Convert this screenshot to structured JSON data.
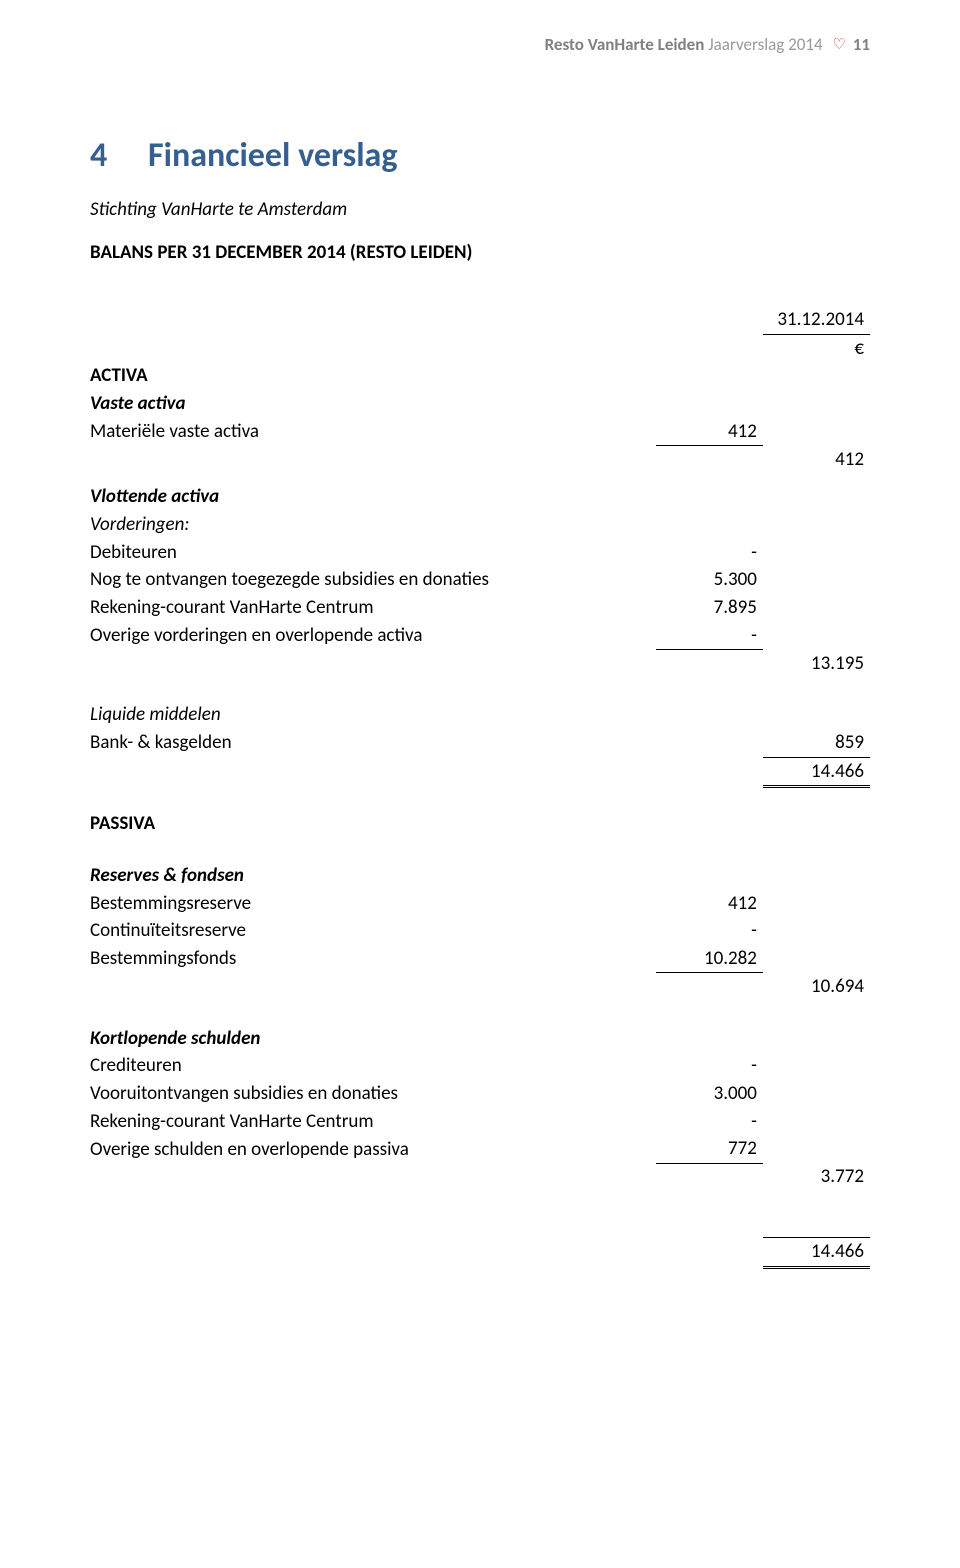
{
  "header": {
    "bold": "Resto VanHarte Leiden",
    "light": " Jaarverslag 2014",
    "heart": "♡",
    "page": "11"
  },
  "section": {
    "num": "4",
    "title": "Financieel verslag",
    "subtitle": "Stichting VanHarte te Amsterdam",
    "balans_title": "BALANS PER 31 DECEMBER 2014 (RESTO LEIDEN)"
  },
  "labels": {
    "date": "31.12.2014",
    "euro": "€",
    "activa": "ACTIVA",
    "vaste_activa": "Vaste activa",
    "materiele_vaste_activa": "Materiële vaste activa",
    "vlottende_activa": "Vlottende activa",
    "vorderingen": "Vorderingen:",
    "debiteuren": "Debiteuren",
    "nog_te_ontvangen": "Nog te ontvangen toegezegde subsidies en donaties",
    "rekening_courant": "Rekening-courant VanHarte Centrum",
    "overige_vorderingen": "Overige vorderingen en overlopende activa",
    "liquide": "Liquide middelen",
    "bank_kas": "Bank- & kasgelden",
    "passiva": "PASSIVA",
    "reserves": "Reserves & fondsen",
    "bestemmingsreserve": "Bestemmingsreserve",
    "continuiteitsreserve": "Continuïteitsreserve",
    "bestemmingsfonds": "Bestemmingsfonds",
    "kortlopende": "Kortlopende schulden",
    "crediteuren": "Crediteuren",
    "vooruitontvangen": "Vooruitontvangen subsidies en donaties",
    "rekening_courant2": "Rekening-courant VanHarte Centrum",
    "overige_schulden": "Overige schulden en overlopende passiva"
  },
  "values": {
    "materiele_vaste_activa": "412",
    "vaste_activa_total": "412",
    "debiteuren": "-",
    "nog_te_ontvangen": "5.300",
    "rekening_courant": "7.895",
    "overige_vorderingen": "-",
    "vlottende_total": "13.195",
    "bank_kas": "859",
    "activa_total": "14.466",
    "bestemmingsreserve": "412",
    "continuiteitsreserve": "-",
    "bestemmingsfonds": "10.282",
    "reserves_total": "10.694",
    "crediteuren": "-",
    "vooruitontvangen": "3.000",
    "rekening_courant2": "-",
    "overige_schulden": "772",
    "kortlopende_total": "3.772",
    "passiva_total": "14.466"
  }
}
